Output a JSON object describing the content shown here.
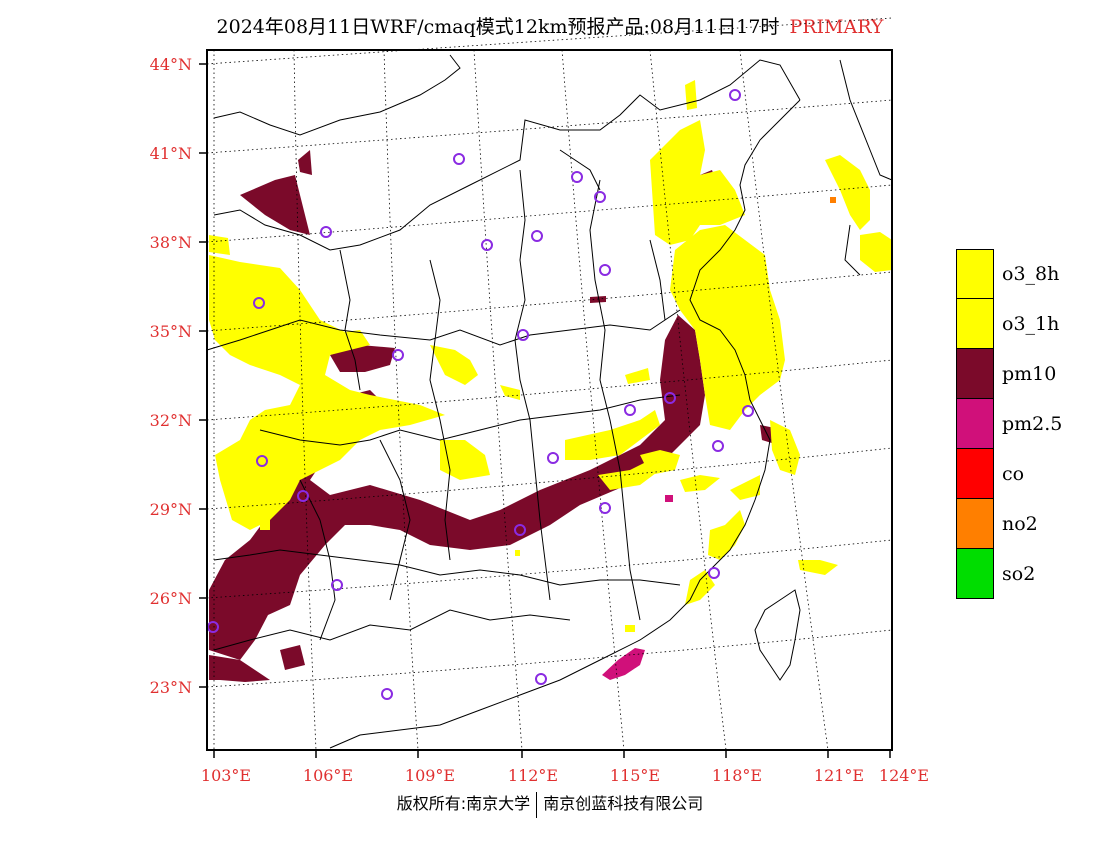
{
  "title": {
    "text": "2024年08月11日WRF/cmaq模式12km预报产品:08月11日17时",
    "highlight": "PRIMARY",
    "highlight_color": "#e03030"
  },
  "map": {
    "lat_labels": [
      "44°N",
      "41°N",
      "38°N",
      "35°N",
      "32°N",
      "29°N",
      "26°N",
      "23°N"
    ],
    "lon_labels": [
      "103°E",
      "106°E",
      "109°E",
      "112°E",
      "115°E",
      "118°E",
      "121°E",
      "124°E"
    ],
    "label_color": "#e03030",
    "marker_color": "#8a2be2"
  },
  "legend": [
    {
      "label": "o3_8h",
      "color": "#ffff00"
    },
    {
      "label": "o3_1h",
      "color": "#ffff00"
    },
    {
      "label": "pm10",
      "color": "#7b0a2a"
    },
    {
      "label": "pm2.5",
      "color": "#d0107a"
    },
    {
      "label": "co",
      "color": "#ff0000"
    },
    {
      "label": "no2",
      "color": "#ff7f00"
    },
    {
      "label": "so2",
      "color": "#00dd00"
    }
  ],
  "footer": {
    "left": "版权所有:南京大学",
    "right": "南京创蓝科技有限公司"
  }
}
